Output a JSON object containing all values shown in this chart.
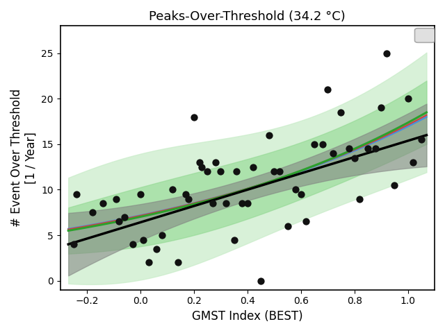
{
  "title": "Peaks-Over-Threshold (34.2 °C)",
  "xlabel": "GMST Index (BEST)",
  "ylabel": "# Event Over Threshold\n[1 / Year]",
  "xlim": [
    -0.3,
    1.1
  ],
  "ylim": [
    -1,
    28
  ],
  "xticks": [
    -0.2,
    0.0,
    0.2,
    0.4,
    0.6,
    0.8,
    1.0
  ],
  "yticks": [
    0,
    5,
    10,
    15,
    20,
    25
  ],
  "scatter_x": [
    -0.25,
    -0.24,
    -0.18,
    -0.14,
    -0.09,
    -0.08,
    -0.06,
    -0.03,
    0.0,
    0.01,
    0.03,
    0.06,
    0.08,
    0.12,
    0.14,
    0.17,
    0.18,
    0.2,
    0.22,
    0.23,
    0.25,
    0.27,
    0.28,
    0.3,
    0.32,
    0.35,
    0.36,
    0.38,
    0.4,
    0.42,
    0.45,
    0.48,
    0.5,
    0.52,
    0.55,
    0.58,
    0.6,
    0.62,
    0.65,
    0.68,
    0.7,
    0.72,
    0.75,
    0.78,
    0.8,
    0.82,
    0.85,
    0.88,
    0.9,
    0.92,
    0.95,
    1.0,
    1.02,
    1.05
  ],
  "scatter_y": [
    4.0,
    9.5,
    7.5,
    8.5,
    9.0,
    6.5,
    7.0,
    4.0,
    9.5,
    4.5,
    2.0,
    3.5,
    5.0,
    10.0,
    2.0,
    9.5,
    9.0,
    18.0,
    13.0,
    12.5,
    12.0,
    8.5,
    13.0,
    12.0,
    8.5,
    4.5,
    12.0,
    8.5,
    8.5,
    12.5,
    0.0,
    16.0,
    12.0,
    12.0,
    6.0,
    10.0,
    9.5,
    6.5,
    15.0,
    15.0,
    21.0,
    14.0,
    18.5,
    14.5,
    13.5,
    9.0,
    14.5,
    14.5,
    19.0,
    25.0,
    10.5,
    20.0,
    13.0,
    15.5
  ],
  "colors": {
    "black_line": "#000000",
    "blue_line": "#4a90d9",
    "red_line": "#d04040",
    "green_line": "#2ca02c",
    "dark_grey_band": "#808080",
    "medium_green_band": "#90d890",
    "light_green_band": "#c8ecc8",
    "scatter": "#111111"
  },
  "background_color": "#ffffff"
}
